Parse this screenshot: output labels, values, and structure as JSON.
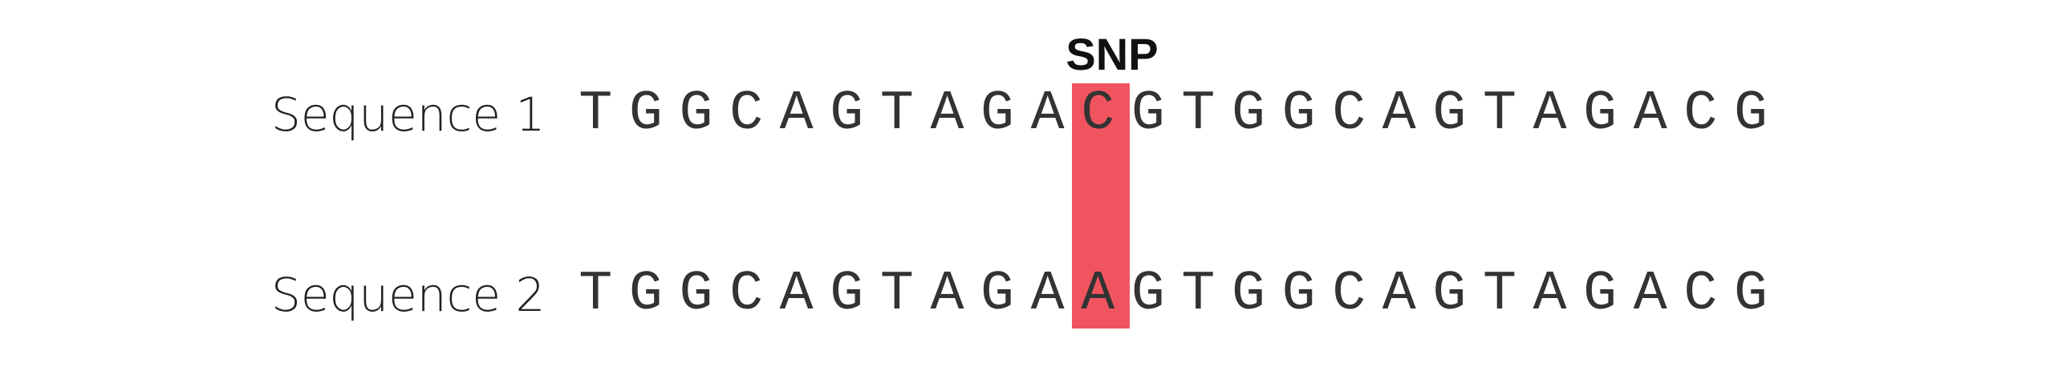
{
  "snp_label": "SNP",
  "highlight_color": "#f0545e",
  "snp_position_index": 10,
  "sequences": [
    {
      "label": "Sequence 1",
      "bases": [
        "T",
        "G",
        "G",
        "C",
        "A",
        "G",
        "T",
        "A",
        "G",
        "A",
        "C",
        "G",
        "T",
        "G",
        "G",
        "C",
        "A",
        "G",
        "T",
        "A",
        "G",
        "A",
        "C",
        "G"
      ]
    },
    {
      "label": "Sequence 2",
      "bases": [
        "T",
        "G",
        "G",
        "C",
        "A",
        "G",
        "T",
        "A",
        "G",
        "A",
        "A",
        "G",
        "T",
        "G",
        "G",
        "C",
        "A",
        "G",
        "T",
        "A",
        "G",
        "A",
        "C",
        "G"
      ]
    }
  ]
}
